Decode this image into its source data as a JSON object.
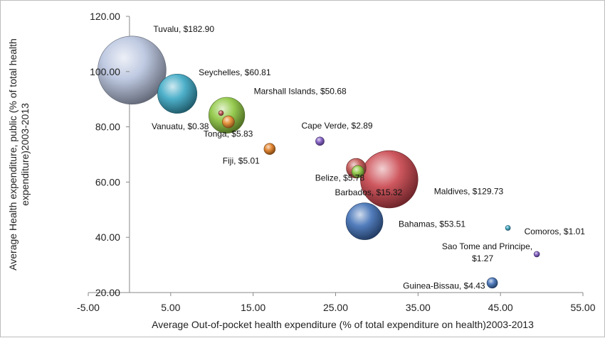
{
  "chart_data": {
    "type": "bubble",
    "xlabel": "Average Out-of-pocket health expenditure (% of total expenditure on health)2003-2013",
    "ylabel": "Average Health expenditure, public (% of total health expenditure)2003-2013",
    "xlim": [
      -5,
      55
    ],
    "ylim": [
      20,
      120
    ],
    "xticks": [
      "-5.00",
      "5.00",
      "15.00",
      "25.00",
      "35.00",
      "45.00",
      "55.00"
    ],
    "yticks": [
      "20.00",
      "40.00",
      "60.00",
      "80.00",
      "100.00",
      "120.00"
    ],
    "grid": false,
    "legend": "none",
    "points": [
      {
        "label": "Tuvalu, $182.90",
        "x": 0.3,
        "y": 100.5,
        "size": 182.9,
        "color": "#b7c3de"
      },
      {
        "label": "Seychelles, $60.81",
        "x": 5.8,
        "y": 92.0,
        "size": 60.81,
        "color": "#3aa7c4"
      },
      {
        "label": "Marshall Islands, $50.68",
        "x": 11.8,
        "y": 84.2,
        "size": 50.68,
        "color": "#8dc63f"
      },
      {
        "label": "Vanuatu, $0.38",
        "x": 11.1,
        "y": 85.0,
        "size": 0.38,
        "color": "#c0504d"
      },
      {
        "label": "Tonga, $5.83",
        "x": 12.0,
        "y": 81.8,
        "size": 5.83,
        "color": "#e58a2b"
      },
      {
        "label": "Fiji, $5.01",
        "x": 17.0,
        "y": 72.0,
        "size": 5.01,
        "color": "#e07b20"
      },
      {
        "label": "Cape Verde, $2.89",
        "x": 23.1,
        "y": 74.8,
        "size": 2.89,
        "color": "#7e57c2"
      },
      {
        "label": "Barbados, $15.32",
        "x": 27.5,
        "y": 65.0,
        "size": 15.32,
        "color": "#c0504d"
      },
      {
        "label": "Belize, $5.78",
        "x": 27.7,
        "y": 63.8,
        "size": 5.78,
        "color": "#8dc63f"
      },
      {
        "label": "Maldives, $129.73",
        "x": 31.5,
        "y": 61.0,
        "size": 129.73,
        "color": "#c9444c"
      },
      {
        "label": "Bahamas, $53.51",
        "x": 28.5,
        "y": 45.8,
        "size": 53.51,
        "color": "#3f6fb5"
      },
      {
        "label": "Comoros,  $1.01",
        "x": 45.9,
        "y": 43.4,
        "size": 1.01,
        "color": "#3aa7c4"
      },
      {
        "label": "Sao Tome and Principe, $1.27",
        "x": 49.4,
        "y": 33.9,
        "size": 1.27,
        "color": "#7e57c2"
      },
      {
        "label": "Guinea-Bissau, $4.43",
        "x": 44.0,
        "y": 23.5,
        "size": 4.43,
        "color": "#3f6fb5"
      }
    ]
  }
}
